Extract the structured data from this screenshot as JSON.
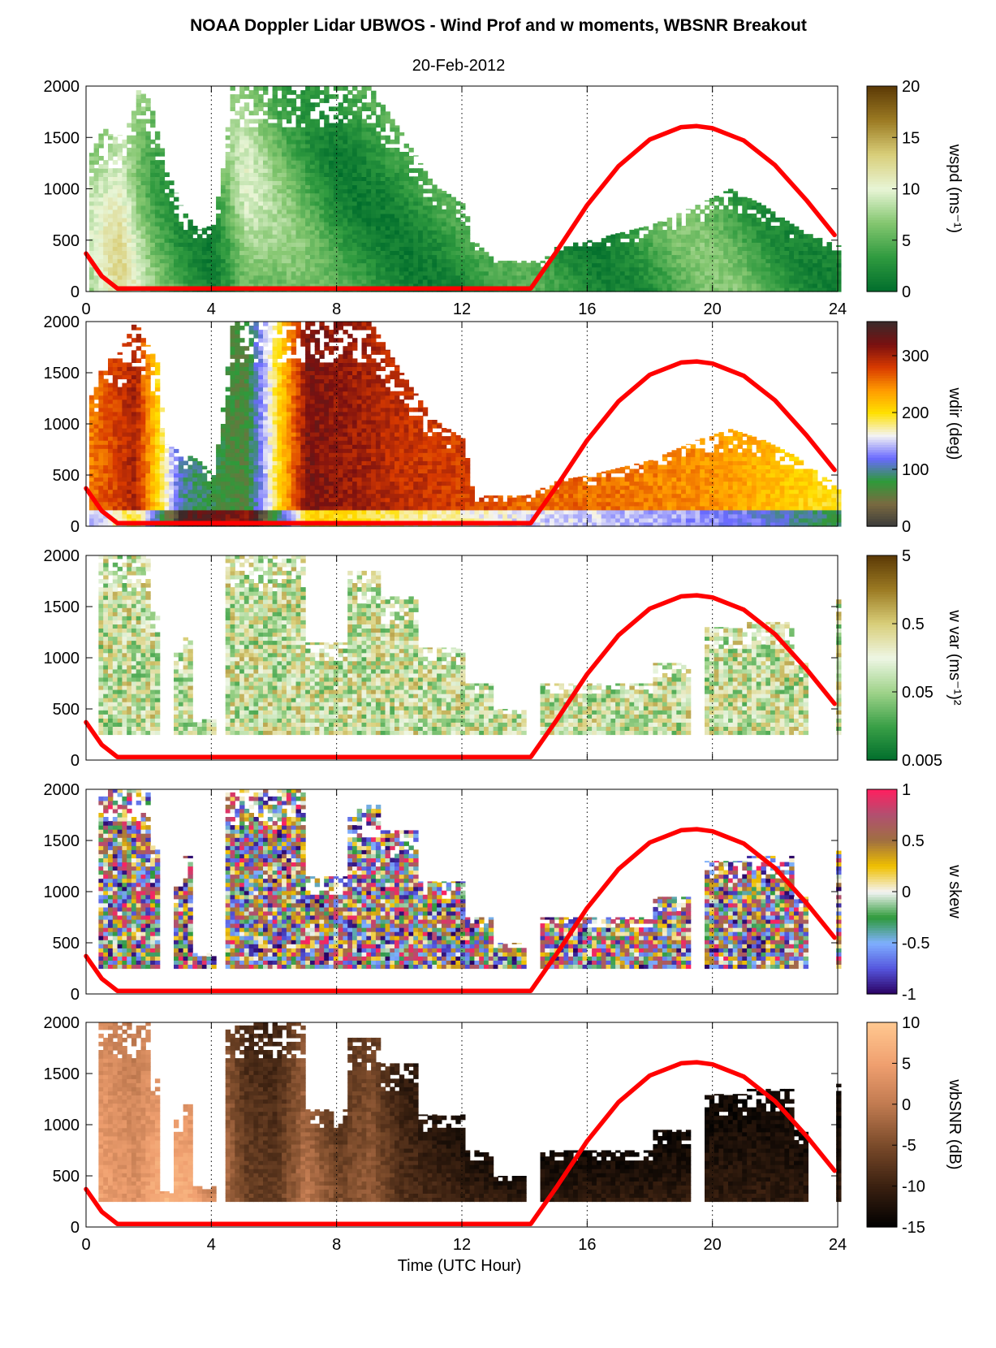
{
  "figure": {
    "title": "NOAA Doppler Lidar UBWOS - Wind Prof and w moments, WBSNR Breakout",
    "date": "20-Feb-2012",
    "xlabel": "Time (UTC Hour)"
  },
  "chart_data": [
    {
      "type": "heatmap",
      "panel": "wspd",
      "cbar_label": "wspd (ms⁻¹)",
      "x": {
        "range": [
          0,
          24
        ],
        "ticks": [
          0,
          4,
          8,
          12,
          16,
          20,
          24
        ],
        "tick_labels": [
          "0",
          "4",
          "8",
          "12",
          "16",
          "20",
          "24"
        ],
        "grid": "dotted vertical at 4,8,12,16,20"
      },
      "y": {
        "range": [
          0,
          2000
        ],
        "ticks": [
          0,
          500,
          1000,
          1500,
          2000
        ],
        "tick_labels": [
          "0",
          "500",
          "1000",
          "1500",
          "2000"
        ]
      },
      "colorbar": {
        "range": [
          0,
          20
        ],
        "ticks": [
          0,
          5,
          10,
          15,
          20
        ],
        "tick_labels": [
          "0",
          "5",
          "10",
          "15",
          "20"
        ],
        "scale": "linear",
        "colors": [
          "#006d2c",
          "#2f9a3f",
          "#83c66f",
          "#e8f5d6",
          "#d9cf7a",
          "#9c7b23",
          "#5c3a06"
        ]
      },
      "top_profile": [
        [
          0.1,
          1350
        ],
        [
          0.5,
          1600
        ],
        [
          0.8,
          1500
        ],
        [
          1.2,
          1550
        ],
        [
          1.5,
          2000
        ],
        [
          2.0,
          1850
        ],
        [
          2.5,
          1200
        ],
        [
          3.0,
          800
        ],
        [
          3.5,
          600
        ],
        [
          4.0,
          650
        ],
        [
          4.3,
          1200
        ],
        [
          4.6,
          2000
        ],
        [
          7.0,
          2000
        ],
        [
          9.0,
          2000
        ],
        [
          10.0,
          1550
        ],
        [
          11.0,
          1050
        ],
        [
          12.0,
          850
        ],
        [
          12.3,
          500
        ],
        [
          13.0,
          300
        ],
        [
          14.5,
          300
        ],
        [
          15.0,
          450
        ],
        [
          16.0,
          500
        ],
        [
          18.0,
          650
        ],
        [
          19.5,
          850
        ],
        [
          20.5,
          1000
        ],
        [
          21.5,
          850
        ],
        [
          22.5,
          650
        ],
        [
          23.5,
          500
        ],
        [
          23.9,
          450
        ]
      ],
      "mean_speed_ms": [
        [
          0,
          7
        ],
        [
          1,
          11
        ],
        [
          2,
          6
        ],
        [
          3,
          4
        ],
        [
          4,
          3
        ],
        [
          5,
          8
        ],
        [
          6,
          6
        ],
        [
          8,
          3
        ],
        [
          10,
          3
        ],
        [
          12,
          3
        ],
        [
          14,
          3
        ],
        [
          16,
          3
        ],
        [
          18,
          4
        ],
        [
          20,
          5
        ],
        [
          22,
          4
        ],
        [
          24,
          3
        ]
      ],
      "sun_elevation_curve": [
        [
          0.0,
          370
        ],
        [
          0.5,
          150
        ],
        [
          1.0,
          30
        ],
        [
          14.2,
          30
        ],
        [
          15.0,
          380
        ],
        [
          16.0,
          840
        ],
        [
          17.0,
          1220
        ],
        [
          18.0,
          1480
        ],
        [
          19.0,
          1600
        ],
        [
          19.5,
          1610
        ],
        [
          20.0,
          1590
        ],
        [
          21.0,
          1470
        ],
        [
          22.0,
          1230
        ],
        [
          23.0,
          890
        ],
        [
          23.9,
          550
        ]
      ]
    },
    {
      "type": "heatmap",
      "panel": "wdir",
      "cbar_label": "wdir (deg)",
      "x": {
        "range": [
          0,
          24
        ],
        "ticks": [
          0,
          4,
          8,
          12,
          16,
          20,
          24
        ]
      },
      "y": {
        "range": [
          0,
          2000
        ],
        "ticks": [
          0,
          500,
          1000,
          1500,
          2000
        ],
        "tick_labels": [
          "0",
          "500",
          "1000",
          "1500",
          "2000"
        ]
      },
      "colorbar": {
        "range": [
          0,
          360
        ],
        "ticks": [
          0,
          100,
          200,
          300
        ],
        "tick_labels": [
          "0",
          "100",
          "200",
          "300"
        ],
        "scale": "linear",
        "colors": [
          "#3b3b3b",
          "#7a6a40",
          "#2e9a3a",
          "#6a6aff",
          "#f4f4f4",
          "#ffe000",
          "#ff9a00",
          "#d83a00",
          "#7a1010",
          "#3a2a2a"
        ]
      },
      "top_profile": [
        [
          0.1,
          1300
        ],
        [
          0.5,
          1600
        ],
        [
          1.0,
          1700
        ],
        [
          1.5,
          2000
        ],
        [
          2.2,
          1600
        ],
        [
          2.5,
          800
        ],
        [
          3.5,
          650
        ],
        [
          4.0,
          500
        ],
        [
          4.3,
          1200
        ],
        [
          4.6,
          2000
        ],
        [
          9.0,
          2000
        ],
        [
          10.0,
          1500
        ],
        [
          11.0,
          1050
        ],
        [
          12.0,
          850
        ],
        [
          12.3,
          300
        ],
        [
          14.0,
          300
        ],
        [
          15.0,
          450
        ],
        [
          16.0,
          500
        ],
        [
          18.0,
          650
        ],
        [
          19.5,
          850
        ],
        [
          20.5,
          950
        ],
        [
          21.5,
          850
        ],
        [
          22.5,
          700
        ],
        [
          23.9,
          400
        ]
      ],
      "mean_direction_deg": [
        [
          0,
          250
        ],
        [
          1.5,
          300
        ],
        [
          3,
          100
        ],
        [
          5,
          60
        ],
        [
          7,
          320
        ],
        [
          9,
          300
        ],
        [
          10,
          290
        ],
        [
          12,
          280
        ],
        [
          14,
          260
        ],
        [
          16,
          260
        ],
        [
          18,
          250
        ],
        [
          20,
          240
        ],
        [
          22,
          220
        ],
        [
          24,
          190
        ]
      ],
      "sun_elevation_curve": [
        [
          0.0,
          370
        ],
        [
          0.5,
          150
        ],
        [
          1.0,
          30
        ],
        [
          14.2,
          30
        ],
        [
          15.0,
          380
        ],
        [
          16.0,
          840
        ],
        [
          17.0,
          1220
        ],
        [
          18.0,
          1480
        ],
        [
          19.0,
          1600
        ],
        [
          19.5,
          1610
        ],
        [
          20.0,
          1590
        ],
        [
          21.0,
          1470
        ],
        [
          22.0,
          1230
        ],
        [
          23.0,
          890
        ],
        [
          23.9,
          550
        ]
      ]
    },
    {
      "type": "heatmap",
      "panel": "w var",
      "cbar_label": "w var (ms⁻¹)²",
      "x": {
        "range": [
          0,
          24
        ],
        "ticks": [
          0,
          4,
          8,
          12,
          16,
          20,
          24
        ]
      },
      "y": {
        "range": [
          0,
          2000
        ],
        "ticks": [
          0,
          500,
          1000,
          1500,
          2000
        ],
        "tick_labels": [
          "0",
          "500",
          "1000",
          "1500",
          "2000"
        ]
      },
      "colorbar": {
        "range": [
          0.005,
          5
        ],
        "ticks": [
          0.005,
          0.05,
          0.5,
          5
        ],
        "tick_labels": [
          "0.005",
          "0.05",
          "0.5",
          "5"
        ],
        "scale": "log",
        "colors": [
          "#006d2c",
          "#3aa047",
          "#9fd38a",
          "#eef6e4",
          "#d9cf7a",
          "#9c7b23",
          "#5c3a06"
        ]
      },
      "bottom_m": 250,
      "data_blocks": [
        [
          0.3,
          2.0,
          2000
        ],
        [
          2.0,
          2.3,
          1450
        ],
        [
          2.7,
          3.0,
          1050
        ],
        [
          3.0,
          3.3,
          1200
        ],
        [
          3.3,
          4.0,
          400
        ],
        [
          4.4,
          7.0,
          2000
        ],
        [
          7.0,
          8.3,
          1150
        ],
        [
          8.3,
          9.3,
          1850
        ],
        [
          9.3,
          10.5,
          1600
        ],
        [
          10.5,
          12.0,
          1100
        ],
        [
          12.0,
          13.0,
          750
        ],
        [
          13.0,
          14.0,
          500
        ],
        [
          14.5,
          16.0,
          750
        ],
        [
          16.0,
          18.0,
          750
        ],
        [
          18.0,
          19.2,
          950
        ],
        [
          19.7,
          21.0,
          1300
        ],
        [
          21.0,
          22.5,
          1350
        ],
        [
          22.5,
          23.0,
          950
        ],
        [
          23.8,
          24.0,
          1600
        ]
      ],
      "sun_elevation_curve": [
        [
          0.0,
          370
        ],
        [
          0.5,
          150
        ],
        [
          1.0,
          30
        ],
        [
          14.2,
          30
        ],
        [
          15.0,
          380
        ],
        [
          16.0,
          840
        ],
        [
          17.0,
          1220
        ],
        [
          18.0,
          1480
        ],
        [
          19.0,
          1600
        ],
        [
          19.5,
          1610
        ],
        [
          20.0,
          1590
        ],
        [
          21.0,
          1470
        ],
        [
          22.0,
          1230
        ],
        [
          23.0,
          890
        ],
        [
          23.9,
          550
        ]
      ]
    },
    {
      "type": "heatmap",
      "panel": "w skew",
      "cbar_label": "w skew",
      "x": {
        "range": [
          0,
          24
        ],
        "ticks": [
          0,
          4,
          8,
          12,
          16,
          20,
          24
        ]
      },
      "y": {
        "range": [
          0,
          2000
        ],
        "ticks": [
          0,
          500,
          1000,
          1500,
          2000
        ],
        "tick_labels": [
          "0",
          "500",
          "1000",
          "1500",
          "2000"
        ]
      },
      "colorbar": {
        "range": [
          -1,
          1
        ],
        "ticks": [
          -1,
          -0.5,
          0,
          0.5,
          1
        ],
        "tick_labels": [
          "-1",
          "-0.5",
          "0",
          "0.5",
          "1"
        ],
        "scale": "linear",
        "colors": [
          "#2a0060",
          "#5555dd",
          "#7fb0ff",
          "#2e9a3a",
          "#f4f4f4",
          "#f0c000",
          "#a07040",
          "#b05070",
          "#ff2060"
        ]
      },
      "bottom_m": 250,
      "data_blocks": [
        [
          0.3,
          2.0,
          2000
        ],
        [
          2.0,
          2.3,
          1450
        ],
        [
          2.7,
          3.0,
          1050
        ],
        [
          3.0,
          3.3,
          1350
        ],
        [
          3.3,
          4.0,
          400
        ],
        [
          4.4,
          7.0,
          2000
        ],
        [
          7.0,
          8.3,
          1150
        ],
        [
          8.3,
          9.3,
          1850
        ],
        [
          9.3,
          10.5,
          1600
        ],
        [
          10.5,
          12.0,
          1100
        ],
        [
          12.0,
          13.0,
          750
        ],
        [
          13.0,
          14.0,
          500
        ],
        [
          14.5,
          16.0,
          750
        ],
        [
          16.0,
          18.0,
          750
        ],
        [
          18.0,
          19.2,
          950
        ],
        [
          19.7,
          21.0,
          1300
        ],
        [
          21.0,
          22.5,
          1350
        ],
        [
          22.5,
          23.0,
          950
        ],
        [
          23.8,
          24.0,
          1400
        ]
      ],
      "sun_elevation_curve": [
        [
          0.0,
          370
        ],
        [
          0.5,
          150
        ],
        [
          1.0,
          30
        ],
        [
          14.2,
          30
        ],
        [
          15.0,
          380
        ],
        [
          16.0,
          840
        ],
        [
          17.0,
          1220
        ],
        [
          18.0,
          1480
        ],
        [
          19.0,
          1600
        ],
        [
          19.5,
          1610
        ],
        [
          20.0,
          1590
        ],
        [
          21.0,
          1470
        ],
        [
          22.0,
          1230
        ],
        [
          23.0,
          890
        ],
        [
          23.9,
          550
        ]
      ]
    },
    {
      "type": "heatmap",
      "panel": "wbSNR",
      "cbar_label": "wbSNR (dB)",
      "x": {
        "range": [
          0,
          24
        ],
        "ticks": [
          0,
          4,
          8,
          12,
          16,
          20,
          24
        ],
        "tick_labels": [
          "0",
          "4",
          "8",
          "12",
          "16",
          "20",
          "24"
        ]
      },
      "y": {
        "range": [
          0,
          2000
        ],
        "ticks": [
          0,
          500,
          1000,
          1500,
          2000
        ],
        "tick_labels": [
          "0",
          "500",
          "1000",
          "1500",
          "2000"
        ]
      },
      "colorbar": {
        "range": [
          -15,
          10
        ],
        "ticks": [
          -15,
          -10,
          -5,
          0,
          5,
          10
        ],
        "tick_labels": [
          "-15",
          "-10",
          "-5",
          "0",
          "5",
          "10"
        ],
        "scale": "linear",
        "colors": [
          "#000000",
          "#3a2010",
          "#7a4a2a",
          "#c07a50",
          "#f0a070",
          "#ffc890"
        ]
      },
      "bottom_m": 250,
      "data_blocks": [
        [
          0.3,
          2.0,
          2000
        ],
        [
          2.0,
          2.3,
          1450
        ],
        [
          2.3,
          2.7,
          350
        ],
        [
          2.7,
          3.0,
          1050
        ],
        [
          3.0,
          3.3,
          1200
        ],
        [
          3.3,
          4.0,
          400
        ],
        [
          4.4,
          7.0,
          2000
        ],
        [
          7.0,
          8.3,
          1150
        ],
        [
          8.3,
          9.3,
          1850
        ],
        [
          9.3,
          10.5,
          1600
        ],
        [
          10.5,
          12.0,
          1100
        ],
        [
          12.0,
          13.0,
          750
        ],
        [
          13.0,
          14.0,
          500
        ],
        [
          14.5,
          16.0,
          750
        ],
        [
          16.0,
          18.0,
          750
        ],
        [
          18.0,
          19.2,
          950
        ],
        [
          19.7,
          21.0,
          1300
        ],
        [
          21.0,
          22.5,
          1350
        ],
        [
          22.5,
          23.0,
          950
        ],
        [
          23.8,
          24.0,
          1400
        ]
      ],
      "mean_snr_db": [
        [
          0.5,
          5
        ],
        [
          1.5,
          3
        ],
        [
          2.5,
          8
        ],
        [
          3.5,
          6
        ],
        [
          5,
          -6
        ],
        [
          6,
          -7
        ],
        [
          7,
          0
        ],
        [
          8,
          -5
        ],
        [
          9,
          -3
        ],
        [
          10,
          -8
        ],
        [
          12,
          -10
        ],
        [
          14,
          -11
        ],
        [
          16,
          -11
        ],
        [
          18,
          -11
        ],
        [
          20,
          -11
        ],
        [
          22,
          -11
        ],
        [
          24,
          -11
        ]
      ],
      "sun_elevation_curve": [
        [
          0.0,
          370
        ],
        [
          0.5,
          150
        ],
        [
          1.0,
          30
        ],
        [
          14.2,
          30
        ],
        [
          15.0,
          380
        ],
        [
          16.0,
          840
        ],
        [
          17.0,
          1220
        ],
        [
          18.0,
          1480
        ],
        [
          19.0,
          1600
        ],
        [
          19.5,
          1610
        ],
        [
          20.0,
          1590
        ],
        [
          21.0,
          1470
        ],
        [
          22.0,
          1230
        ],
        [
          23.0,
          890
        ],
        [
          23.9,
          550
        ]
      ]
    }
  ],
  "colors": {
    "sun_curve": "#ff0000",
    "grid": "#000000"
  }
}
